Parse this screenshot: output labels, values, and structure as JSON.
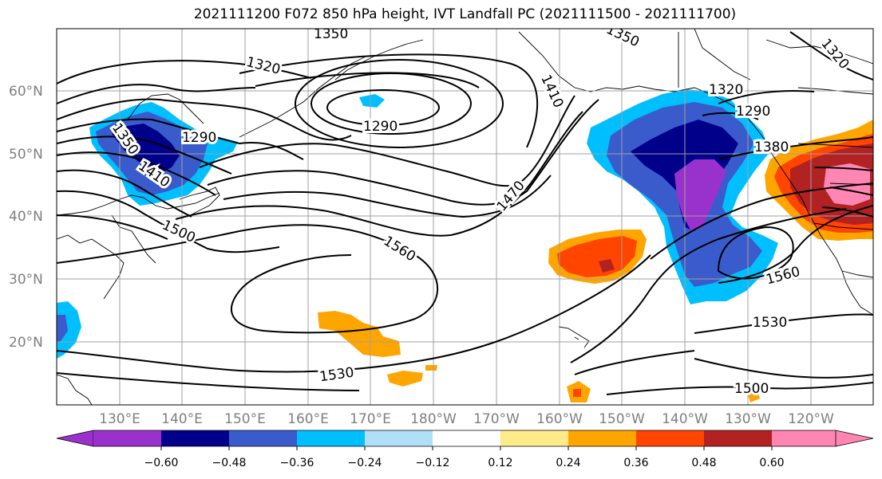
{
  "title": "2021111200 F072 850 hPa height, IVT Landfall PC (2021111500 - 2021111700)",
  "lat_labels": [
    "60°N",
    "50°N",
    "40°N",
    "30°N",
    "20°N"
  ],
  "lon_labels": [
    "130°E",
    "140°E",
    "150°E",
    "160°E",
    "170°E",
    "180°W",
    "170°W",
    "160°W",
    "150°W",
    "140°W",
    "130°W",
    "120°W"
  ],
  "contour_labels": [
    "1320",
    "1290",
    "1290",
    "1350",
    "1410",
    "1410",
    "1470",
    "1500",
    "1560",
    "1530",
    "1530",
    "1500",
    "1560",
    "1320",
    "1380",
    "1320",
    "1350",
    "1350",
    "1290"
  ],
  "colorbar": {
    "ticks": [
      "−0.60",
      "−0.48",
      "−0.36",
      "−0.24",
      "−0.12",
      "0.12",
      "0.24",
      "0.36",
      "0.48",
      "0.60"
    ],
    "colors": {
      "lt_-0.60": "#9932CC",
      "-0.60_-0.48": "#00008B",
      "-0.48_-0.36": "#3A5BCC",
      "-0.36_-0.24": "#00BFFF",
      "-0.24_-0.12": "#B0E0F7",
      "-0.12_0.12": "#FFFFFF",
      "0.12_0.24": "#FFEB8A",
      "0.24_0.36": "#FFA500",
      "0.36_0.48": "#FF4500",
      "0.48_0.60": "#B22222",
      "gt_0.60": "#FF85B3"
    }
  }
}
